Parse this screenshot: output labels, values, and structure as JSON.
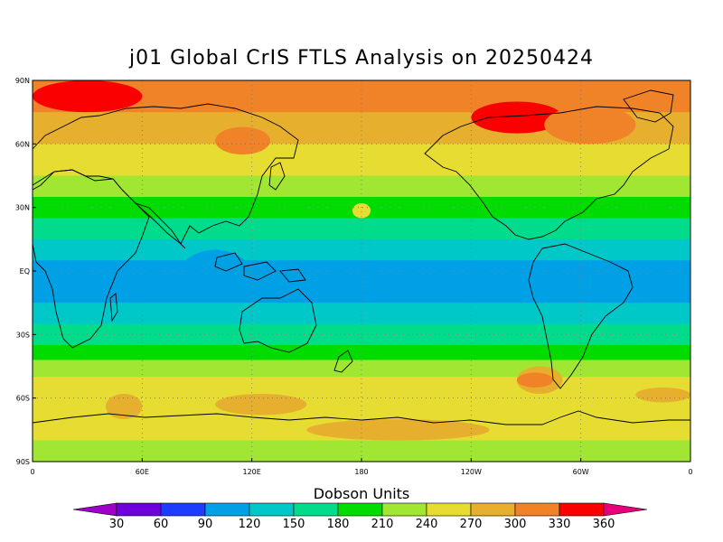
{
  "title": "j01 Global CrIS FTLS Analysis on 20250424",
  "colorbar": {
    "title": "Dobson Units",
    "tick_labels": [
      "30",
      "60",
      "90",
      "120",
      "150",
      "180",
      "210",
      "240",
      "270",
      "300",
      "330",
      "360"
    ],
    "colors": [
      "#a000c8",
      "#6e00dc",
      "#1e3cff",
      "#00a0e6",
      "#00c8c8",
      "#00dc8c",
      "#00dc00",
      "#a0e632",
      "#e6dc32",
      "#e6af2d",
      "#f08228",
      "#fa0000",
      "#e6007a"
    ]
  },
  "map": {
    "lat_labels": [
      "90N",
      "60N",
      "30N",
      "EQ",
      "30S",
      "60S",
      "90S"
    ],
    "lon_labels": [
      "0",
      "60E",
      "120E",
      "180",
      "120W",
      "60W",
      "0"
    ]
  },
  "chart_data": {
    "type": "heatmap",
    "title": "j01 Global CrIS FTLS Analysis on 20250424",
    "units": "Dobson Units",
    "levels": [
      30,
      60,
      90,
      120,
      150,
      180,
      210,
      240,
      270,
      300,
      330,
      360
    ],
    "x_range": [
      0,
      360
    ],
    "y_range": [
      -90,
      90
    ],
    "latitude_bands": [
      {
        "lat": [
          75,
          90
        ],
        "value": 300
      },
      {
        "lat": [
          60,
          75
        ],
        "value": 270
      },
      {
        "lat": [
          45,
          60
        ],
        "value": 240
      },
      {
        "lat": [
          35,
          45
        ],
        "value": 210
      },
      {
        "lat": [
          25,
          35
        ],
        "value": 180
      },
      {
        "lat": [
          15,
          25
        ],
        "value": 150
      },
      {
        "lat": [
          5,
          15
        ],
        "value": 120
      },
      {
        "lat": [
          -15,
          5
        ],
        "value": 90
      },
      {
        "lat": [
          -25,
          -15
        ],
        "value": 120
      },
      {
        "lat": [
          -35,
          -25
        ],
        "value": 150
      },
      {
        "lat": [
          -42,
          -35
        ],
        "value": 180
      },
      {
        "lat": [
          -50,
          -42
        ],
        "value": 210
      },
      {
        "lat": [
          -58,
          -50
        ],
        "value": 240
      },
      {
        "lat": [
          -68,
          -58
        ],
        "value": 240
      },
      {
        "lat": [
          -80,
          -68
        ],
        "value": 240
      },
      {
        "lat": [
          -90,
          -80
        ],
        "value": 210
      }
    ],
    "features": [
      {
        "lon": [
          0,
          60
        ],
        "lat": [
          75,
          90
        ],
        "value": 330
      },
      {
        "lon": [
          240,
          290
        ],
        "lat": [
          65,
          80
        ],
        "value": 330
      },
      {
        "lon": [
          100,
          130
        ],
        "lat": [
          55,
          68
        ],
        "value": 300
      },
      {
        "lon": [
          280,
          330
        ],
        "lat": [
          60,
          78
        ],
        "value": 300
      },
      {
        "lon": [
          330,
          360
        ],
        "lat": [
          85,
          90
        ],
        "value": 300
      },
      {
        "lon": [
          80,
          120
        ],
        "lat": [
          -15,
          10
        ],
        "value": 90
      },
      {
        "lon": [
          300,
          360
        ],
        "lat": [
          -15,
          -5
        ],
        "value": 90
      },
      {
        "lon": [
          40,
          60
        ],
        "lat": [
          -70,
          -58
        ],
        "value": 270
      },
      {
        "lon": [
          100,
          150
        ],
        "lat": [
          -68,
          -58
        ],
        "value": 270
      },
      {
        "lon": [
          150,
          250
        ],
        "lat": [
          -80,
          -70
        ],
        "value": 270
      },
      {
        "lon": [
          265,
          290
        ],
        "lat": [
          -58,
          -45
        ],
        "value": 270
      },
      {
        "lon": [
          330,
          360
        ],
        "lat": [
          -62,
          -55
        ],
        "value": 270
      },
      {
        "lon": [
          265,
          285
        ],
        "lat": [
          -55,
          -48
        ],
        "value": 300
      },
      {
        "lon": [
          175,
          185
        ],
        "lat": [
          25,
          32
        ],
        "value": 240
      }
    ]
  }
}
